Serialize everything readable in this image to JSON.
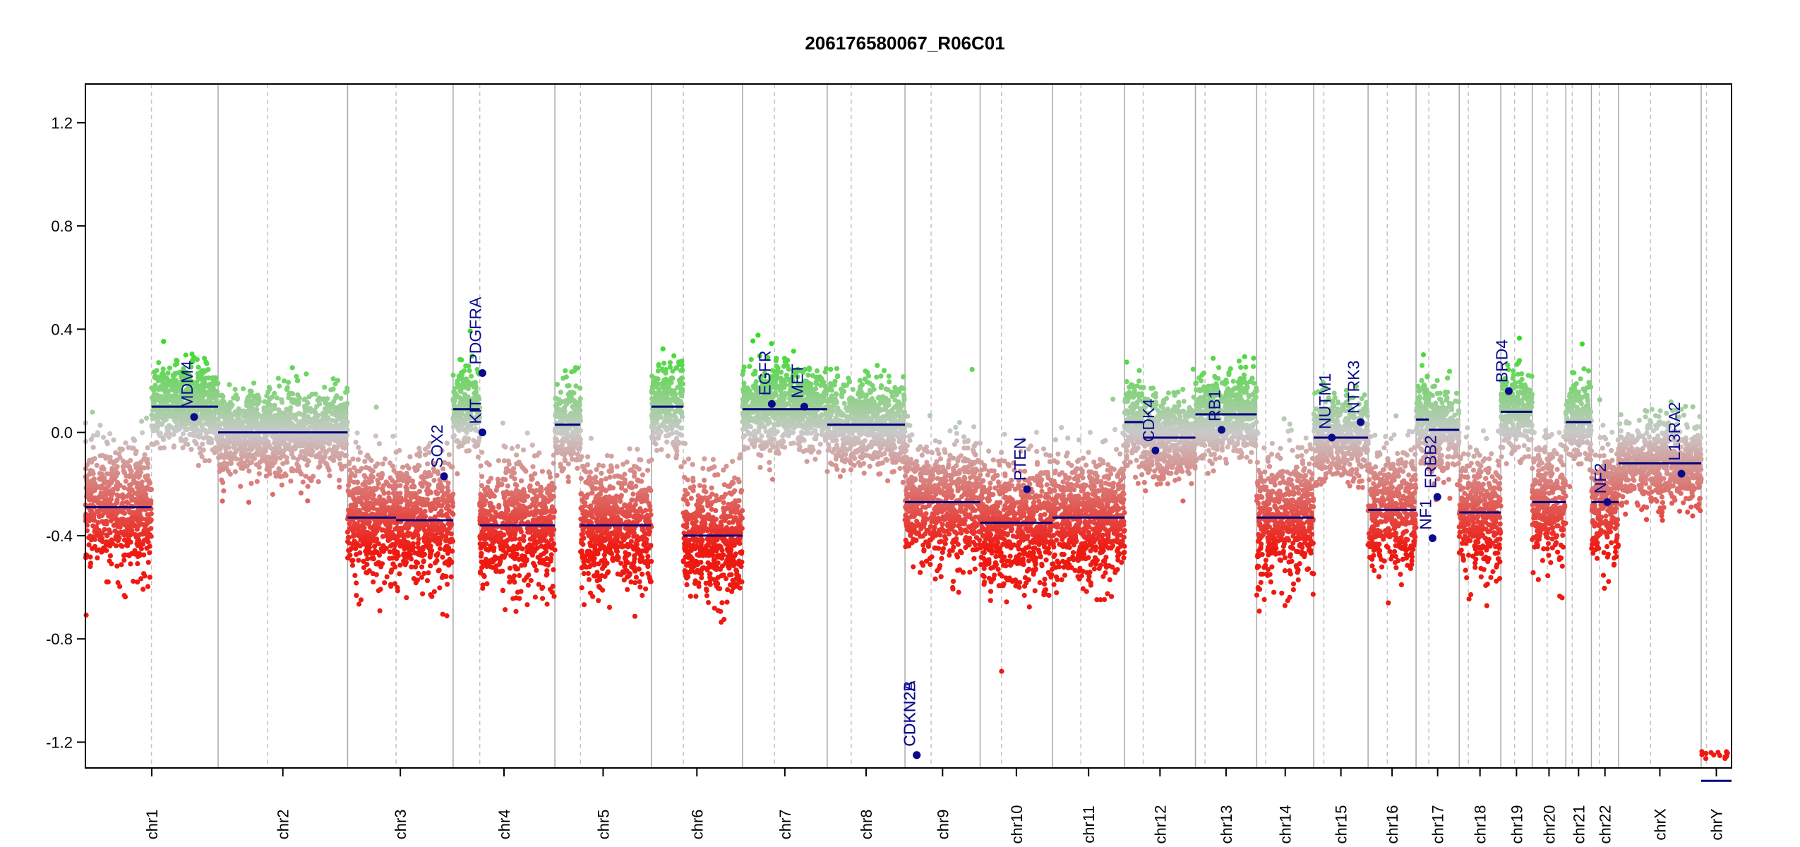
{
  "chart_data": {
    "type": "scatter",
    "title": "206176580067_R06C01",
    "xlabel": "",
    "ylabel": "",
    "ylim": [
      -1.3,
      1.35
    ],
    "yticks": [
      -1.2,
      -0.8,
      -0.4,
      0.0,
      0.4,
      0.8,
      1.2
    ],
    "grid": "chromosome boundaries (solid) and centromeres (dashed)",
    "legend": "none",
    "colors": {
      "gain": "#33dd22",
      "loss": "#ee1a12",
      "neutral": "#c9c9c9",
      "segment": "#00007a",
      "gene": "#0a0a8c",
      "boundary": "#a8a8a8",
      "centromere": "#c4c4c4"
    },
    "chromosomes": [
      {
        "name": "chr1",
        "length": 249,
        "centromere": 124,
        "segments": [
          [
            0,
            124,
            -0.29
          ],
          [
            124,
            249,
            0.1
          ]
        ]
      },
      {
        "name": "chr2",
        "length": 243,
        "centromere": 93,
        "segments": [
          [
            0,
            243,
            0.0
          ]
        ]
      },
      {
        "name": "chr3",
        "length": 198,
        "centromere": 91,
        "segments": [
          [
            0,
            91,
            -0.33
          ],
          [
            91,
            198,
            -0.34
          ]
        ]
      },
      {
        "name": "chr4",
        "length": 191,
        "centromere": 50,
        "segments": [
          [
            0,
            50,
            0.09
          ],
          [
            50,
            191,
            -0.36
          ]
        ]
      },
      {
        "name": "chr5",
        "length": 181,
        "centromere": 48,
        "segments": [
          [
            0,
            48,
            0.03
          ],
          [
            48,
            181,
            -0.36
          ]
        ]
      },
      {
        "name": "chr6",
        "length": 171,
        "centromere": 60,
        "segments": [
          [
            0,
            60,
            0.1
          ],
          [
            60,
            171,
            -0.4
          ]
        ]
      },
      {
        "name": "chr7",
        "length": 159,
        "centromere": 60,
        "segments": [
          [
            0,
            159,
            0.09
          ]
        ]
      },
      {
        "name": "chr8",
        "length": 146,
        "centromere": 45,
        "segments": [
          [
            0,
            146,
            0.03
          ]
        ]
      },
      {
        "name": "chr9",
        "length": 141,
        "centromere": 49,
        "segments": [
          [
            0,
            141,
            -0.27
          ]
        ]
      },
      {
        "name": "chr10",
        "length": 136,
        "centromere": 40,
        "segments": [
          [
            0,
            136,
            -0.35
          ]
        ]
      },
      {
        "name": "chr11",
        "length": 135,
        "centromere": 53,
        "segments": [
          [
            0,
            135,
            -0.33
          ]
        ]
      },
      {
        "name": "chr12",
        "length": 133,
        "centromere": 35,
        "segments": [
          [
            0,
            35,
            0.04
          ],
          [
            35,
            133,
            -0.02
          ]
        ]
      },
      {
        "name": "chr13",
        "length": 115,
        "centromere": 18,
        "segments": [
          [
            0,
            115,
            0.07
          ]
        ]
      },
      {
        "name": "chr14",
        "length": 107,
        "centromere": 17,
        "segments": [
          [
            0,
            107,
            -0.33
          ]
        ]
      },
      {
        "name": "chr15",
        "length": 102,
        "centromere": 19,
        "segments": [
          [
            0,
            102,
            -0.02
          ]
        ]
      },
      {
        "name": "chr16",
        "length": 90,
        "centromere": 36,
        "segments": [
          [
            0,
            90,
            -0.3
          ]
        ]
      },
      {
        "name": "chr17",
        "length": 81,
        "centromere": 24,
        "segments": [
          [
            0,
            24,
            0.05
          ],
          [
            24,
            81,
            0.01
          ]
        ]
      },
      {
        "name": "chr18",
        "length": 78,
        "centromere": 17,
        "segments": [
          [
            0,
            78,
            -0.31
          ]
        ]
      },
      {
        "name": "chr19",
        "length": 59,
        "centromere": 26,
        "segments": [
          [
            0,
            59,
            0.08
          ]
        ]
      },
      {
        "name": "chr20",
        "length": 63,
        "centromere": 28,
        "segments": [
          [
            0,
            63,
            -0.27
          ]
        ]
      },
      {
        "name": "chr21",
        "length": 48,
        "centromere": 12,
        "segments": [
          [
            0,
            48,
            0.04
          ]
        ]
      },
      {
        "name": "chr22",
        "length": 51,
        "centromere": 15,
        "segments": [
          [
            0,
            51,
            -0.27
          ]
        ]
      },
      {
        "name": "chrX",
        "length": 155,
        "centromere": 60,
        "segments": [
          [
            0,
            155,
            -0.12
          ]
        ]
      },
      {
        "name": "chrY",
        "length": 57,
        "centromere": 10,
        "segments": [
          [
            0,
            57,
            -1.35
          ]
        ]
      }
    ],
    "genes": [
      {
        "name": "MDM4",
        "chr": "chr1",
        "pos": 204,
        "value": 0.06
      },
      {
        "name": "PDGFRA",
        "chr": "chr4",
        "pos": 55,
        "value": 0.23
      },
      {
        "name": "KIT",
        "chr": "chr4",
        "pos": 55,
        "value": 0.0
      },
      {
        "name": "SOX2",
        "chr": "chr3",
        "pos": 181,
        "value": -0.17
      },
      {
        "name": "EGFR",
        "chr": "chr7",
        "pos": 55,
        "value": 0.11
      },
      {
        "name": "MET",
        "chr": "chr7",
        "pos": 116,
        "value": 0.1
      },
      {
        "name": "CDKN2B",
        "chr": "chr9",
        "pos": 22,
        "value": -1.25
      },
      {
        "name": "CDKN2A",
        "chr": "chr9",
        "pos": 22,
        "value": -1.25
      },
      {
        "name": "PTEN",
        "chr": "chr10",
        "pos": 88,
        "value": -0.22
      },
      {
        "name": "CDK4",
        "chr": "chr12",
        "pos": 58,
        "value": -0.07
      },
      {
        "name": "RB1",
        "chr": "chr13",
        "pos": 49,
        "value": 0.01
      },
      {
        "name": "NUTM1",
        "chr": "chr15",
        "pos": 34,
        "value": -0.02
      },
      {
        "name": "NTRK3",
        "chr": "chr15",
        "pos": 88,
        "value": 0.04
      },
      {
        "name": "ERBB2",
        "chr": "chr17",
        "pos": 40,
        "value": -0.25
      },
      {
        "name": "NF1",
        "chr": "chr17",
        "pos": 31,
        "value": -0.41
      },
      {
        "name": "BRD4",
        "chr": "chr19",
        "pos": 15,
        "value": 0.16
      },
      {
        "name": "NF2",
        "chr": "chr22",
        "pos": 30,
        "value": -0.27
      },
      {
        "name": "IL13RA2",
        "chr": "chrX",
        "pos": 118,
        "value": -0.16
      }
    ]
  }
}
